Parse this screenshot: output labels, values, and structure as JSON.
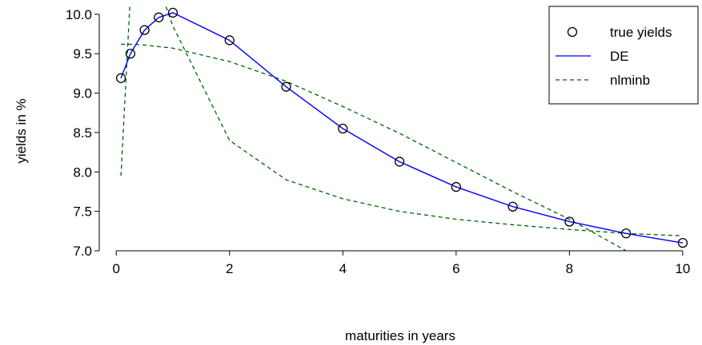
{
  "chart_data": {
    "type": "line",
    "xlabel": "maturities in years",
    "ylabel": "yields in %",
    "xlim": [
      -0.3,
      10.1
    ],
    "ylim": [
      7.0,
      10.1
    ],
    "xticks": [
      0,
      2,
      4,
      6,
      8,
      10
    ],
    "xtick_labels": [
      "0",
      "2",
      "4",
      "6",
      "8",
      "10"
    ],
    "yticks": [
      7.0,
      7.5,
      8.0,
      8.5,
      9.0,
      9.5,
      10.0
    ],
    "ytick_labels": [
      "7.0",
      "7.5",
      "8.0",
      "8.5",
      "9.0",
      "9.5",
      "10.0"
    ],
    "grid": false,
    "legend_position": "top-right",
    "series": [
      {
        "name": "true yields",
        "style": "markers",
        "color": "#000000",
        "x": [
          0.083,
          0.25,
          0.5,
          0.75,
          1,
          2,
          3,
          4,
          5,
          6,
          7,
          8,
          9,
          10
        ],
        "y": [
          9.19,
          9.5,
          9.8,
          9.96,
          10.02,
          9.67,
          9.08,
          8.55,
          8.13,
          7.81,
          7.56,
          7.37,
          7.22,
          7.1
        ]
      },
      {
        "name": "DE",
        "style": "solid",
        "color": "#0000ff",
        "x": [
          0.083,
          0.25,
          0.5,
          0.75,
          1,
          2,
          3,
          4,
          5,
          6,
          7,
          8,
          9,
          10
        ],
        "y": [
          9.19,
          9.5,
          9.8,
          9.96,
          10.02,
          9.67,
          9.08,
          8.55,
          8.13,
          7.81,
          7.56,
          7.37,
          7.22,
          7.1
        ]
      },
      {
        "name": "nlminb",
        "style": "dashed",
        "color": "#006400",
        "curves": [
          {
            "x": [
              0.083,
              0.25,
              0.5,
              0.75,
              1,
              2,
              3,
              4,
              5,
              6,
              7,
              8,
              9,
              10
            ],
            "y": [
              9.62,
              9.62,
              9.61,
              9.59,
              9.57,
              9.4,
              9.15,
              8.83,
              8.49,
              8.12,
              7.75,
              7.4,
              7.0,
              6.65
            ]
          },
          {
            "x": [
              0.083,
              0.25,
              0.5,
              0.75,
              1,
              2,
              3,
              4,
              5,
              6,
              7,
              8,
              9,
              10
            ],
            "y": [
              7.95,
              10.25,
              10.55,
              10.35,
              9.85,
              8.4,
              7.9,
              7.66,
              7.5,
              7.4,
              7.33,
              7.27,
              7.22,
              7.19
            ]
          }
        ]
      }
    ]
  }
}
